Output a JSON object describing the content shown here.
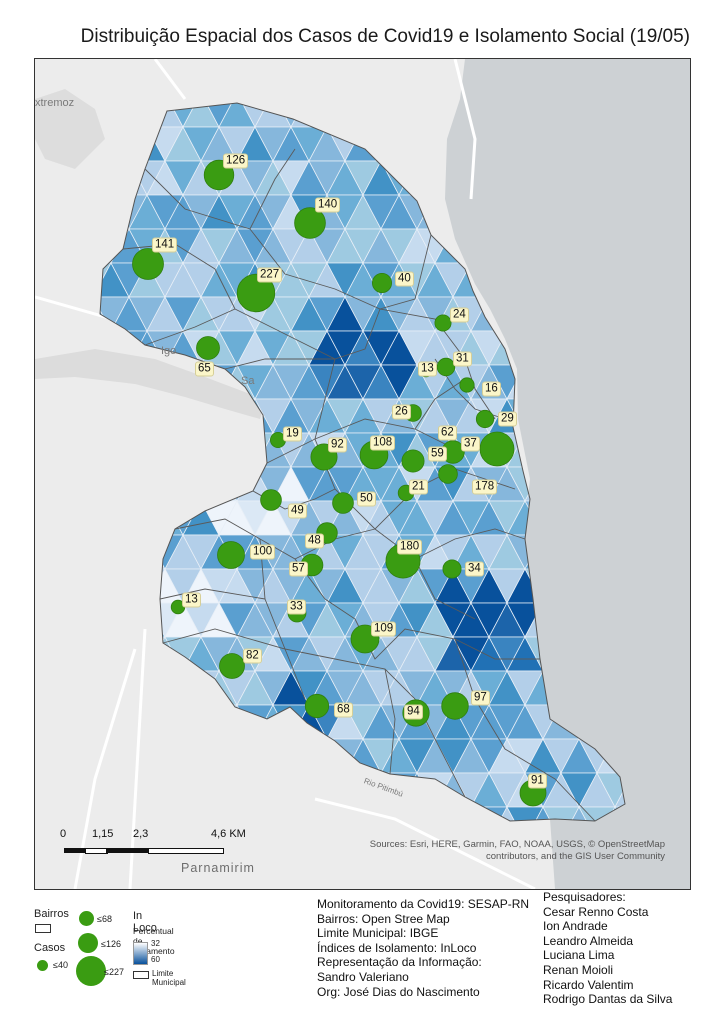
{
  "title": "Distribuição Espacial dos Casos de Covid19 e Isolamento Social (19/05)",
  "place_labels": [
    "xtremoz",
    "Igo",
    "Sa",
    "Parnamirim",
    "Rio Pitimbú"
  ],
  "attribution": "Sources: Esri, HERE, Garmin, FAO, NOAA, USGS, © OpenStreetMap contributors, and the GIS User Community",
  "scale": {
    "ticks": [
      "0",
      "1,15",
      "2,3",
      "4,6 KM"
    ]
  },
  "cases": [
    {
      "value": "126",
      "cases": 126
    },
    {
      "value": "140",
      "cases": 140
    },
    {
      "value": "141",
      "cases": 141
    },
    {
      "value": "227",
      "cases": 227
    },
    {
      "value": "40",
      "cases": 40
    },
    {
      "value": "24",
      "cases": 24
    },
    {
      "value": "65",
      "cases": 65
    },
    {
      "value": "13",
      "cases": 13
    },
    {
      "value": "31",
      "cases": 31
    },
    {
      "value": "16",
      "cases": 16
    },
    {
      "value": "26",
      "cases": 26
    },
    {
      "value": "29",
      "cases": 29
    },
    {
      "value": "62",
      "cases": 62
    },
    {
      "value": "19",
      "cases": 19
    },
    {
      "value": "92",
      "cases": 92
    },
    {
      "value": "108",
      "cases": 108
    },
    {
      "value": "59",
      "cases": 59
    },
    {
      "value": "37",
      "cases": 37
    },
    {
      "value": "178",
      "cases": 178
    },
    {
      "value": "21",
      "cases": 21
    },
    {
      "value": "50",
      "cases": 50
    },
    {
      "value": "49",
      "cases": 49
    },
    {
      "value": "48",
      "cases": 48
    },
    {
      "value": "100",
      "cases": 100
    },
    {
      "value": "180",
      "cases": 180
    },
    {
      "value": "57",
      "cases": 57
    },
    {
      "value": "34",
      "cases": 34
    },
    {
      "value": "13",
      "cases": 13
    },
    {
      "value": "33",
      "cases": 33
    },
    {
      "value": "109",
      "cases": 109
    },
    {
      "value": "82",
      "cases": 82
    },
    {
      "value": "97",
      "cases": 97
    },
    {
      "value": "68",
      "cases": 68
    },
    {
      "value": "94",
      "cases": 94
    },
    {
      "value": "91",
      "cases": 91
    }
  ],
  "legend": {
    "bairros": "Bairros",
    "casos": "Casos",
    "size_labels": [
      "≤40",
      "≤68",
      "≤126",
      "≤227"
    ],
    "inloco_title": "In Loco",
    "inloco_subtitle": "Percentual de Isolamento",
    "ramp_high": "32",
    "ramp_low": "60",
    "limite": "Limite Municipal"
  },
  "credits": [
    "Monitoramento da Covid19: SESAP-RN",
    "Bairros: Open Stree Map",
    "Limite Municipal: IBGE",
    "Índices de Isolamento: InLoco",
    "Representação da Informação:",
    "Sandro Valeriano",
    "Org: José Dias do Nascimento"
  ],
  "researchers": [
    "Pesquisadores:",
    "Cesar Renno Costa",
    "Ion Andrade",
    "Leandro Almeida",
    "Luciana Lima",
    "Renan Moioli",
    "Ricardo Valentim",
    "Rodrigo Dantas da Silva"
  ],
  "colors": {
    "circle": "#3a9c12",
    "ocean": "#cfd3d6",
    "land": "#e9e9e9"
  }
}
